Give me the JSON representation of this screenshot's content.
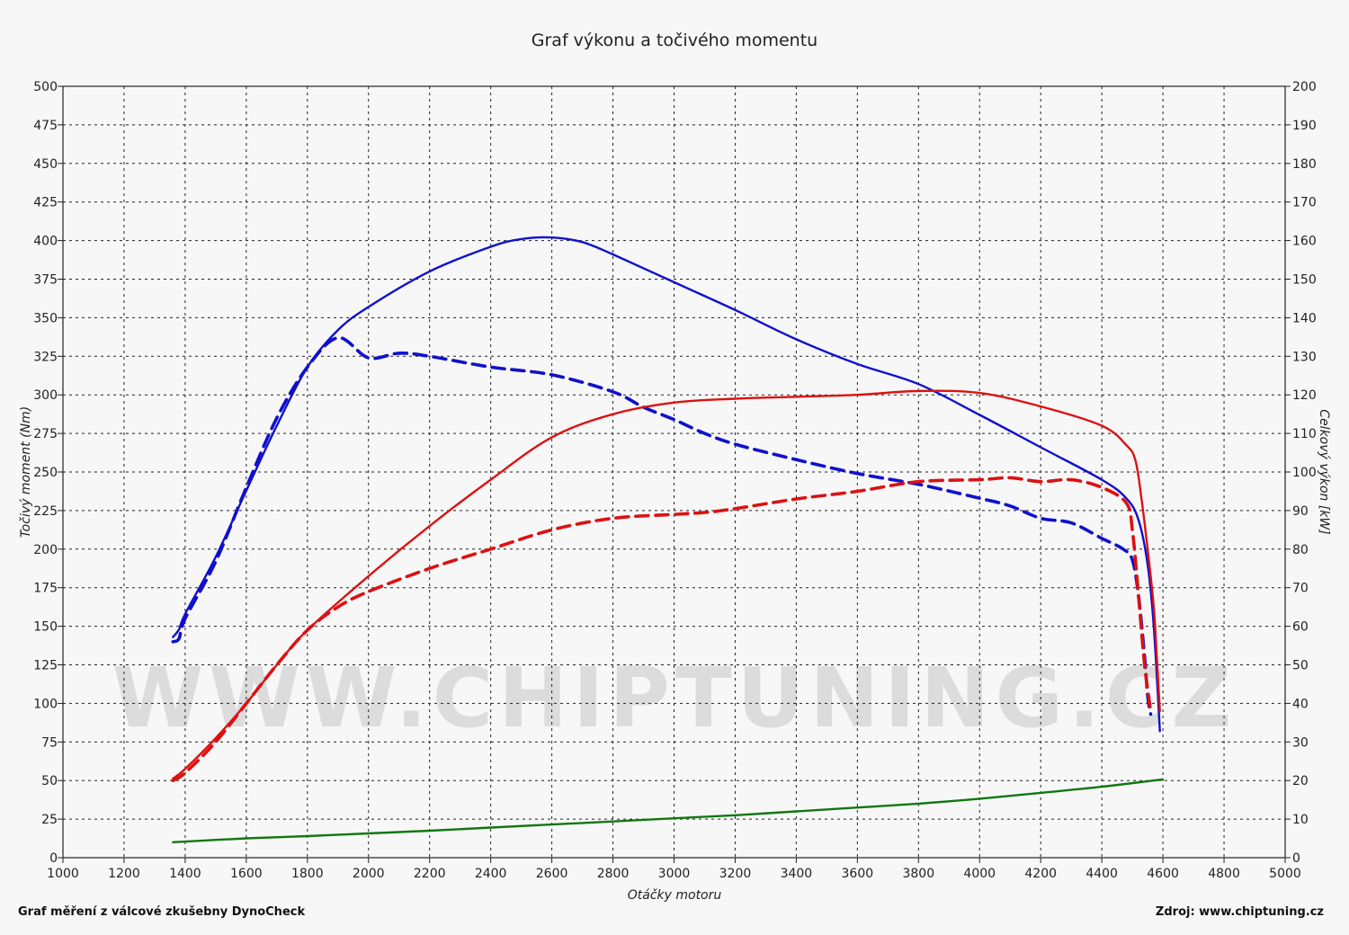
{
  "chart_data": {
    "type": "line",
    "title": "Graf výkonu a točivého momentu",
    "xlabel": "Otáčky motoru",
    "ylabel_left": "Točivý moment (Nm)",
    "ylabel_right": "Celkový výkon [kW]",
    "xlim": [
      1000,
      5000
    ],
    "ylim_left": [
      0,
      500
    ],
    "ylim_right": [
      0,
      200
    ],
    "x_ticks": [
      "1000",
      "1200",
      "1400",
      "1600",
      "1800",
      "2000",
      "2200",
      "2400",
      "2600",
      "2800",
      "3000",
      "3200",
      "3400",
      "3600",
      "3800",
      "4000",
      "4200",
      "4400",
      "4600",
      "4800",
      "5000"
    ],
    "y_left_ticks": [
      "0",
      "25",
      "50",
      "75",
      "100",
      "125",
      "150",
      "175",
      "200",
      "225",
      "250",
      "275",
      "300",
      "325",
      "350",
      "375",
      "400",
      "425",
      "450",
      "475",
      "500"
    ],
    "y_right_ticks": [
      "0",
      "10",
      "20",
      "30",
      "40",
      "50",
      "60",
      "70",
      "80",
      "90",
      "100",
      "110",
      "120",
      "130",
      "140",
      "150",
      "160",
      "170",
      "180",
      "190",
      "200"
    ],
    "grid": true,
    "watermark": "WWW.CHIPTUNING.CZ",
    "series": [
      {
        "axis": "left",
        "color": "#1010cc",
        "style": "solid",
        "x": [
          1360,
          1380,
          1400,
          1500,
          1600,
          1700,
          1800,
          1900,
          2000,
          2200,
          2400,
          2500,
          2600,
          2700,
          2800,
          3000,
          3200,
          3400,
          3600,
          3800,
          4000,
          4200,
          4400,
          4480,
          4520,
          4550,
          4570,
          4590
        ],
        "y": [
          143,
          148,
          158,
          195,
          238,
          280,
          318,
          342,
          357,
          380,
          396,
          401,
          402,
          399,
          391,
          373,
          355,
          336,
          320,
          307,
          287,
          266,
          245,
          233,
          219,
          190,
          150,
          82
        ]
      },
      {
        "axis": "left",
        "color": "#1010cc",
        "style": "dashed",
        "x": [
          1360,
          1380,
          1400,
          1500,
          1600,
          1700,
          1800,
          1900,
          2000,
          2100,
          2200,
          2400,
          2600,
          2800,
          2900,
          3000,
          3100,
          3200,
          3400,
          3600,
          3800,
          4000,
          4100,
          4200,
          4300,
          4400,
          4470,
          4500,
          4520,
          4540,
          4550,
          4560
        ],
        "y": [
          140,
          142,
          155,
          192,
          240,
          285,
          318,
          337,
          324,
          327,
          325,
          318,
          313,
          302,
          292,
          284,
          275,
          268,
          258,
          249,
          242,
          233,
          228,
          220,
          217,
          207,
          200,
          193,
          170,
          130,
          105,
          93
        ]
      },
      {
        "axis": "right",
        "color": "#dd1111",
        "style": "solid",
        "x": [
          1360,
          1400,
          1500,
          1600,
          1700,
          1800,
          2000,
          2200,
          2400,
          2600,
          2800,
          3000,
          3200,
          3400,
          3600,
          3800,
          4000,
          4200,
          4400,
          4480,
          4510,
          4530,
          4550,
          4570,
          4580,
          4590
        ],
        "y": [
          20.5,
          23,
          31,
          40,
          50,
          59,
          73,
          86,
          98,
          109,
          115,
          118,
          119,
          119.5,
          120,
          121,
          120.5,
          117,
          112,
          107,
          103,
          93,
          80,
          65,
          52,
          38
        ]
      },
      {
        "axis": "right",
        "color": "#dd1111",
        "style": "dashed",
        "x": [
          1360,
          1400,
          1500,
          1600,
          1700,
          1800,
          1900,
          2000,
          2200,
          2400,
          2600,
          2800,
          3000,
          3100,
          3200,
          3400,
          3600,
          3800,
          4000,
          4100,
          4200,
          4300,
          4400,
          4480,
          4500,
          4520,
          4540,
          4560
        ],
        "y": [
          20,
          22,
          30,
          40,
          50,
          59,
          65,
          69,
          75,
          80,
          85,
          88,
          89,
          89.5,
          90.5,
          93,
          95,
          97.5,
          98,
          98.5,
          97.5,
          98,
          96,
          92,
          85,
          68,
          50,
          38
        ]
      },
      {
        "axis": "right",
        "color": "#117711",
        "style": "solid",
        "x": [
          1360,
          1600,
          1800,
          2000,
          2200,
          2400,
          2600,
          2800,
          3000,
          3200,
          3400,
          3600,
          3800,
          4000,
          4200,
          4400,
          4600
        ],
        "y": [
          4,
          5,
          5.6,
          6.3,
          7,
          7.8,
          8.6,
          9.4,
          10.2,
          11,
          12,
          13,
          14,
          15.3,
          16.8,
          18.4,
          20.3
        ]
      }
    ]
  },
  "footer": {
    "left": "Graf měření z válcové zkušebny DynoCheck",
    "right": "Zdroj: www.chiptuning.cz"
  }
}
